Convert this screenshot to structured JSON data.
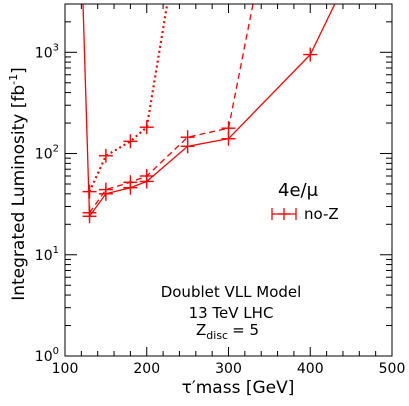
{
  "chart_data": {
    "type": "line",
    "xlabel": "τ′mass  [GeV]",
    "ylabel_main": "Integrated Luminosity [fb",
    "ylabel_sup": "-1",
    "ylabel_end": "]",
    "xlim": [
      100,
      500
    ],
    "ylim": [
      1,
      3000
    ],
    "yscale": "log",
    "x_ticks": [
      100,
      200,
      300,
      400,
      500
    ],
    "y_ticks": [
      {
        "value": 1,
        "base": "10",
        "exp": "0"
      },
      {
        "value": 10,
        "base": "10",
        "exp": "1"
      },
      {
        "value": 100,
        "base": "10",
        "exp": "2"
      },
      {
        "value": 1000,
        "base": "10",
        "exp": "3"
      }
    ],
    "color": "#ff0000",
    "series": [
      {
        "style": "solid",
        "x": [
          130,
          150,
          180,
          200,
          250,
          300,
          400,
          430
        ],
        "y": [
          24,
          40,
          46,
          53,
          118,
          140,
          950,
          3000
        ],
        "markers": [
          130,
          150,
          180,
          200,
          250,
          300,
          400
        ]
      },
      {
        "style": "dashed",
        "x": [
          130,
          150,
          180,
          200,
          250,
          300,
          330
        ],
        "y": [
          26,
          44,
          52,
          60,
          145,
          178,
          3000
        ],
        "markers": [
          130,
          150,
          180,
          200,
          250,
          300
        ]
      },
      {
        "style": "dotted",
        "x": [
          130,
          150,
          180,
          200,
          225
        ],
        "y": [
          42,
          95,
          132,
          182,
          3000
        ],
        "markers": [
          130,
          150,
          180,
          200
        ]
      },
      {
        "style": "solid",
        "x": [
          122,
          130
        ],
        "y": [
          3000,
          24
        ],
        "markers": []
      }
    ],
    "annotations": {
      "channel": "4e/μ",
      "legend_label": "no-Z",
      "model": "Doublet VLL Model",
      "collider": "13 TeV LHC",
      "zdisc_main": "Z",
      "zdisc_sub": "disc",
      "zdisc_value": "= 5"
    }
  }
}
